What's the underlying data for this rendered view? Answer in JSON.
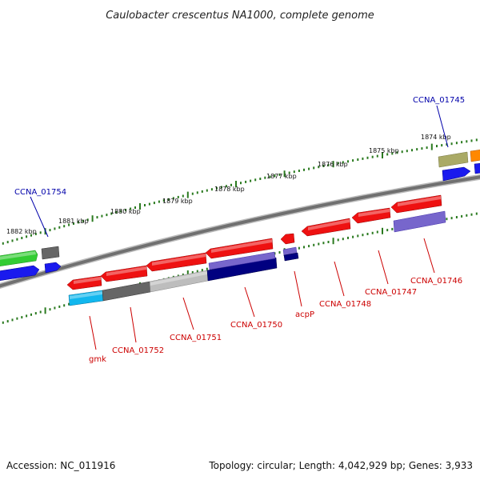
{
  "title": "Caulobacter crescentus NA1000, complete genome",
  "footer": {
    "accession": "Accession: NC_011916",
    "topology": "Topology: circular; Length: 4,042,929 bp; Genes: 3,933"
  },
  "ruler_ticks": [
    "1882 kbp",
    "1881 kbp",
    "1880 kbp",
    "1879 kbp",
    "1878 kbp",
    "1877 kbp",
    "1876 kbp",
    "1875 kbp",
    "1874 kbp"
  ],
  "forward_labels": [
    "CCNA_01754",
    "CCNA_01745"
  ],
  "reverse_labels": [
    "gmk",
    "CCNA_01752",
    "CCNA_01751",
    "CCNA_01750",
    "acpP",
    "CCNA_01748",
    "CCNA_01747",
    "CCNA_01746"
  ],
  "colors": {
    "backbone": "#7a7a7a",
    "tick": "#2a7a1f",
    "reverse_label": "#cc0000",
    "forward_label": "#0000aa",
    "feature_red": "#ee1111",
    "feature_green": "#33cc33",
    "feature_blue": "#1a1aee",
    "feature_gray": "#666666",
    "feature_silver": "#bdbdbd",
    "feature_cyan": "#11b7ee",
    "feature_navy": "#000080",
    "feature_purple": "#7766cc",
    "feature_olive": "#aaaa66",
    "feature_orange": "#ff8800"
  }
}
